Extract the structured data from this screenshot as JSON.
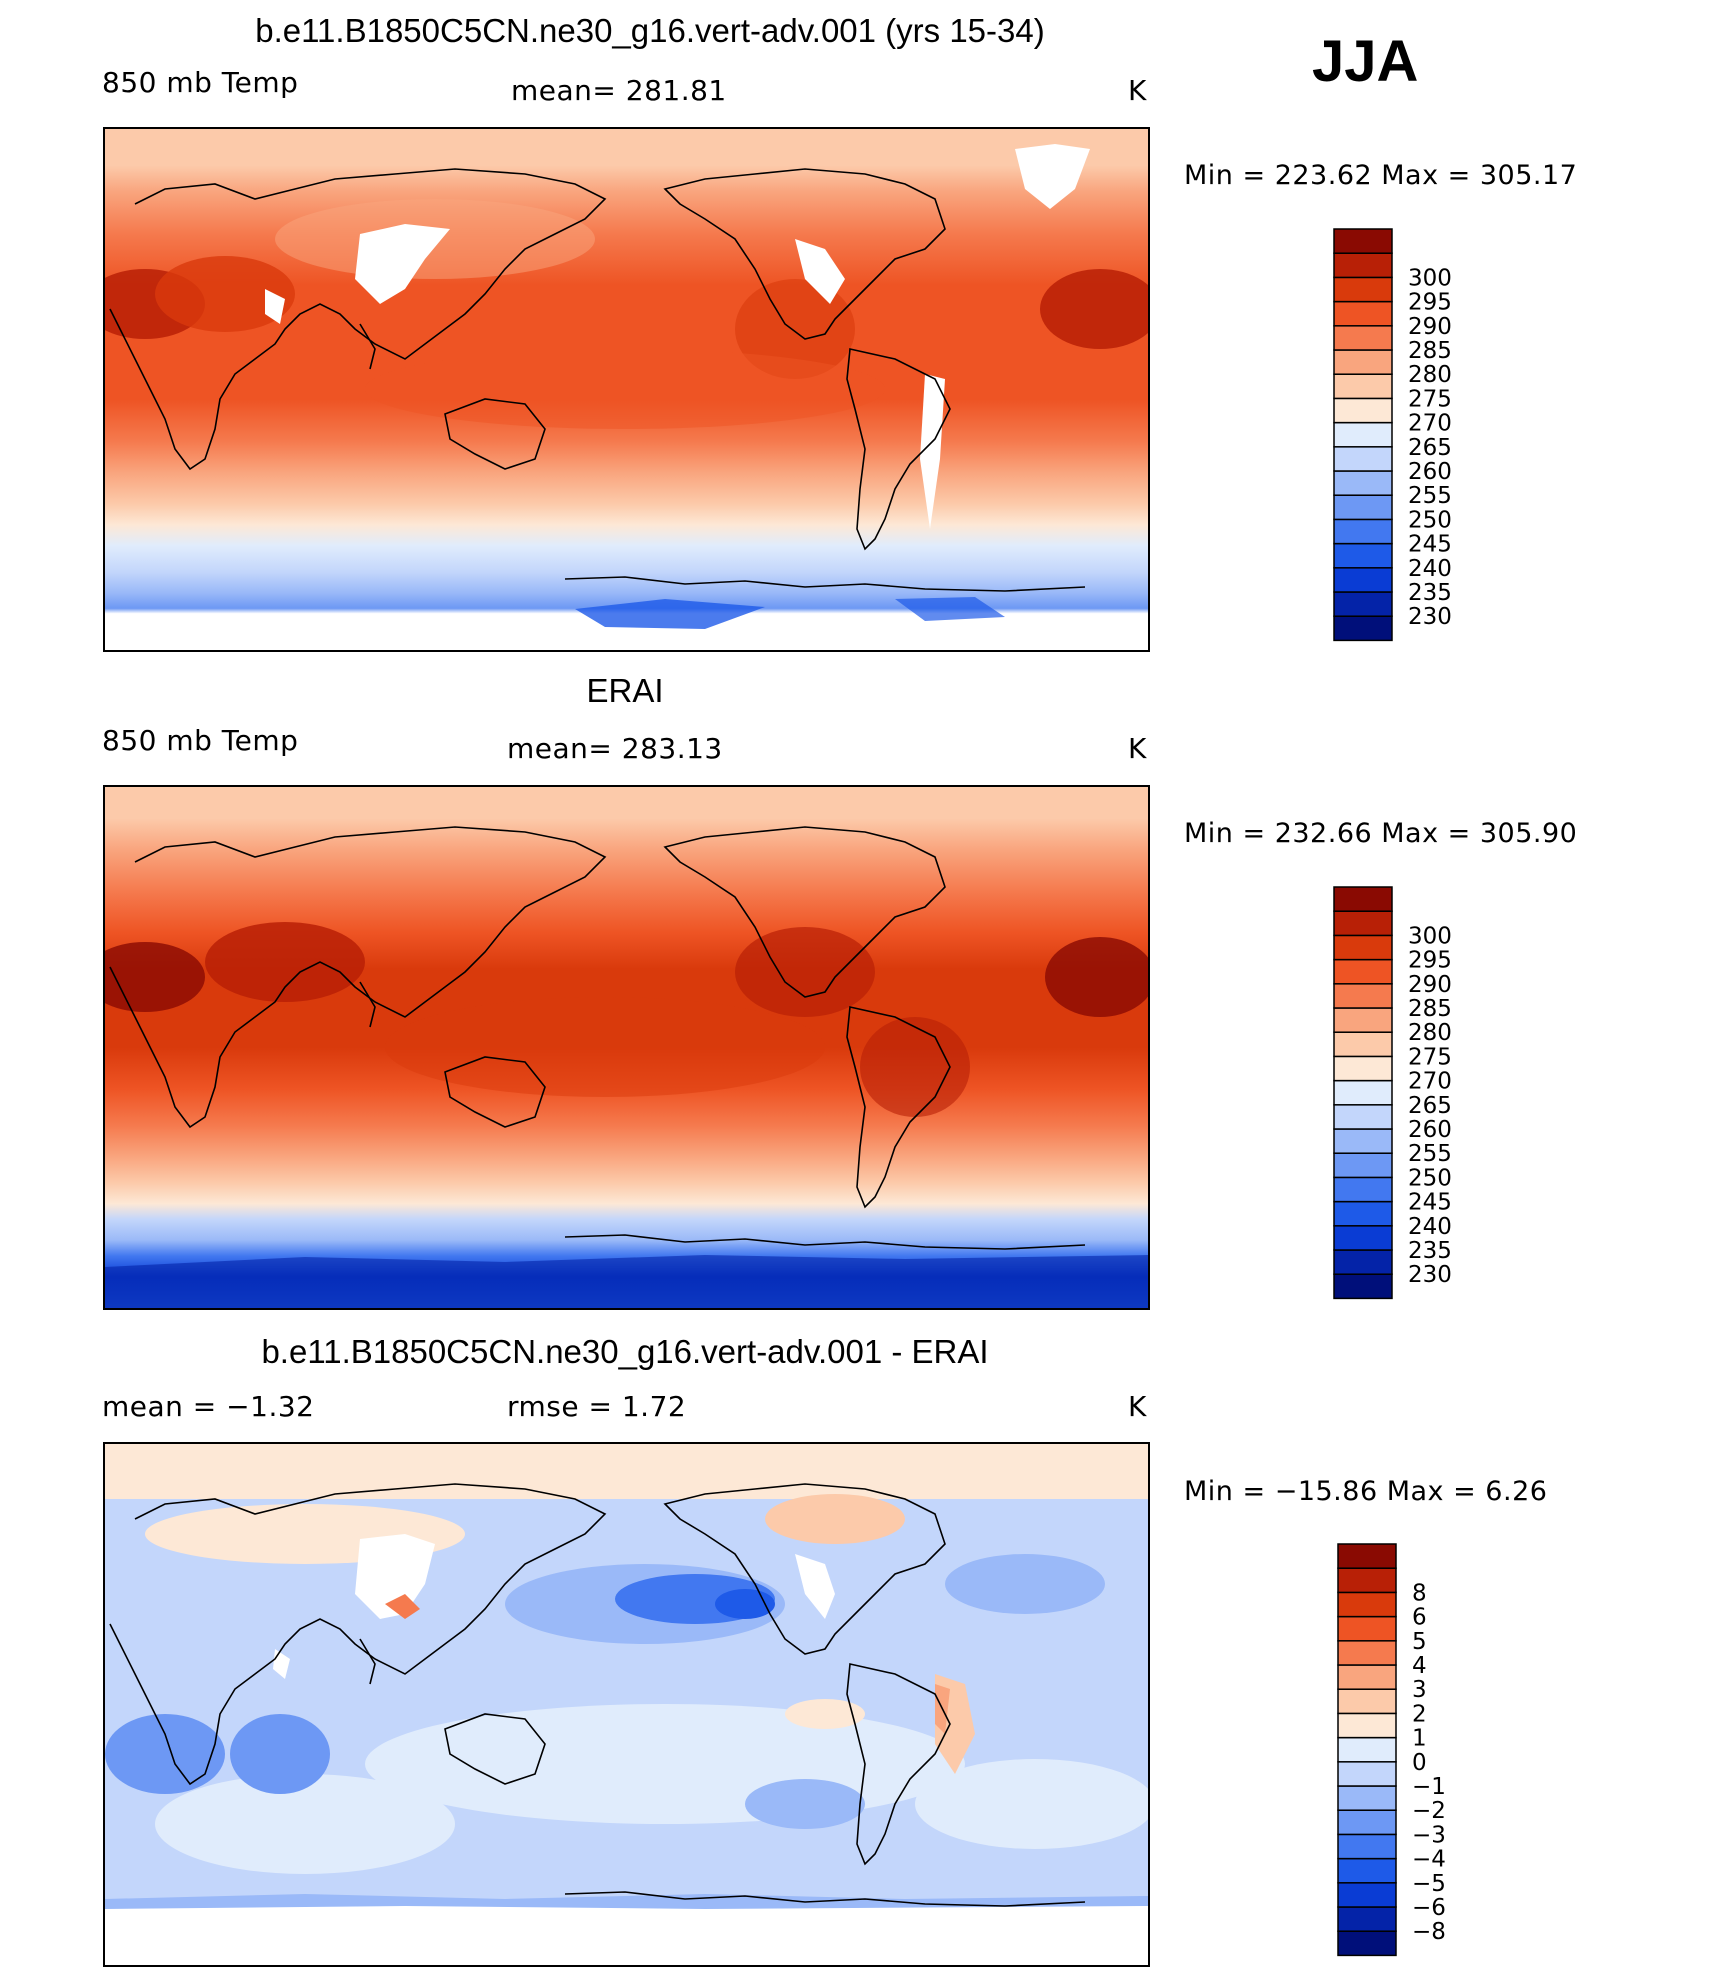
{
  "season": "JJA",
  "panels": [
    {
      "id": "model",
      "title": "b.e11.B1850C5CN.ne30_g16.vert-adv.001 (yrs 15-34)",
      "left_label": "850 mb Temp",
      "center_label": "mean=  281.81",
      "right_label": "K",
      "minmax": "Min  =  223.62  Max  =  305.17",
      "kind": "abs"
    },
    {
      "id": "obs",
      "title": "ERAI",
      "left_label": "850 mb Temp",
      "center_label": "mean=  283.13",
      "right_label": "K",
      "minmax": "Min  =  232.66  Max  =  305.90",
      "kind": "abs"
    },
    {
      "id": "diff",
      "title": "b.e11.B1850C5CN.ne30_g16.vert-adv.001 - ERAI",
      "left_label": "mean  =    −1.32",
      "center_label": "rmse  =     1.72",
      "right_label": "K",
      "minmax": "Min  =  −15.86  Max  =     6.26",
      "kind": "diff"
    }
  ],
  "colorbars": {
    "abs": {
      "colors": [
        "#000f7a",
        "#0423a8",
        "#0a3cd4",
        "#1e5ae8",
        "#4278f0",
        "#6d98f4",
        "#9ab9f8",
        "#c3d6fb",
        "#e0ecfc",
        "#fde8d6",
        "#fccaaa",
        "#f9a57e",
        "#f57a4e",
        "#ee5424",
        "#d93a0c",
        "#b82006",
        "#8a0a02"
      ],
      "labels": [
        "230",
        "235",
        "240",
        "245",
        "250",
        "255",
        "260",
        "265",
        "270",
        "275",
        "280",
        "285",
        "290",
        "295",
        "300"
      ]
    },
    "diff": {
      "colors": [
        "#000f7a",
        "#0423a8",
        "#0a3cd4",
        "#1e5ae8",
        "#4278f0",
        "#6d98f4",
        "#9ab9f8",
        "#c3d6fb",
        "#e0ecfc",
        "#fde8d6",
        "#fccaaa",
        "#f9a57e",
        "#f57a4e",
        "#ee5424",
        "#d93a0c",
        "#b82006",
        "#8a0a02"
      ],
      "labels": [
        "−8",
        "−6",
        "−5",
        "−4",
        "−3",
        "−2",
        "−1",
        "0",
        "1",
        "2",
        "3",
        "4",
        "5",
        "6",
        "8"
      ]
    }
  },
  "chart_data": [
    {
      "type": "heatmap",
      "title": "b.e11.B1850C5CN.ne30_g16.vert-adv.001 (yrs 15-34)",
      "variable": "850 mb Temp",
      "units": "K",
      "mean": 281.81,
      "min": 223.62,
      "max": 305.17,
      "contour_levels": [
        230,
        235,
        240,
        245,
        250,
        255,
        260,
        265,
        270,
        275,
        280,
        285,
        290,
        295,
        300
      ]
    },
    {
      "type": "heatmap",
      "title": "ERAI",
      "variable": "850 mb Temp",
      "units": "K",
      "mean": 283.13,
      "min": 232.66,
      "max": 305.9,
      "contour_levels": [
        230,
        235,
        240,
        245,
        250,
        255,
        260,
        265,
        270,
        275,
        280,
        285,
        290,
        295,
        300
      ]
    },
    {
      "type": "heatmap",
      "title": "b.e11.B1850C5CN.ne30_g16.vert-adv.001 - ERAI",
      "units": "K",
      "mean": -1.32,
      "rmse": 1.72,
      "min": -15.86,
      "max": 6.26,
      "contour_levels": [
        -8,
        -6,
        -5,
        -4,
        -3,
        -2,
        -1,
        0,
        1,
        2,
        3,
        4,
        5,
        6,
        8
      ]
    }
  ]
}
